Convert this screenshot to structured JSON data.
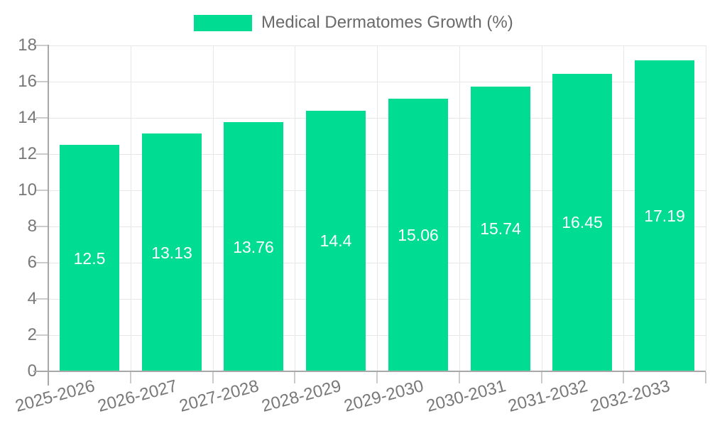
{
  "legend": {
    "label": "Medical Dermatomes Growth (%)"
  },
  "chart_data": {
    "type": "bar",
    "title": "Medical Dermatomes Growth (%)",
    "categories": [
      "2025-2026",
      "2026-2027",
      "2027-2028",
      "2028-2029",
      "2029-2030",
      "2030-2031",
      "2031-2032",
      "2032-2033"
    ],
    "values": [
      12.5,
      13.13,
      13.76,
      14.4,
      15.06,
      15.74,
      16.45,
      17.19
    ],
    "value_labels": [
      "12.5",
      "13.13",
      "13.76",
      "14.4",
      "15.06",
      "15.74",
      "16.45",
      "17.19"
    ],
    "xlabel": "",
    "ylabel": "",
    "ylim": [
      0,
      18
    ],
    "yticks": [
      0,
      2,
      4,
      6,
      8,
      10,
      12,
      14,
      16,
      18
    ],
    "grid": true,
    "legend_position": "top",
    "x_label_rotation_deg": -15,
    "colors": {
      "bar": "#00DC92",
      "bar_label": "#FFFFFF",
      "grid": "#E7E7E7",
      "tick": "#CBCBCB",
      "axis": "#A8A8A8",
      "axis_text": "#787878",
      "title_text": "#6A6A6A"
    }
  }
}
